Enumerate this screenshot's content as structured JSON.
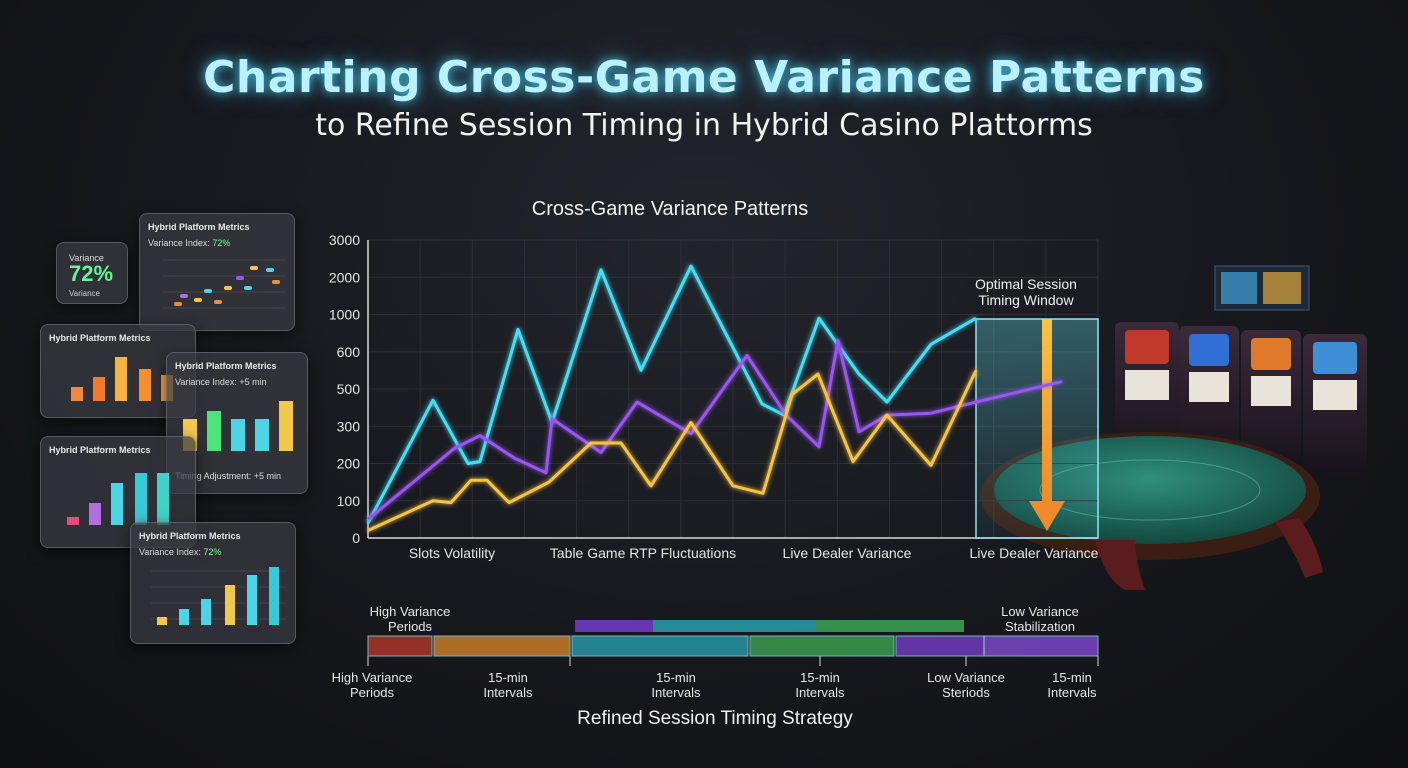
{
  "header": {
    "title": "Charting Cross-Game Variance Patterns",
    "subtitle": "to Refine Session Timing in Hybrid Casino Plattorms"
  },
  "cards": {
    "small": {
      "label": "Variance",
      "value": "72%",
      "footer": "Variance"
    },
    "card1": {
      "title": "Hybrid Platform Metrics",
      "sub_prefix": "Variance Index:",
      "sub_value": "72%"
    },
    "card2": {
      "title": "Hybrid Platform Metrics"
    },
    "card3": {
      "title": "Hybrid Platform Metrics",
      "sub": "Variance Index: +5 min",
      "footer": "Timing Adjustment: +5 min"
    },
    "card4": {
      "title": "Hybrid Platform Metrics"
    },
    "card5": {
      "title": "Hybrid Platform Metrics",
      "sub_prefix": "Variance Index:",
      "sub_value": "72%"
    }
  },
  "chart_data": {
    "type": "line",
    "title": "Cross-Game Variance Patterns",
    "y_ticks": [
      "3000",
      "2000",
      "1000",
      "600",
      "500",
      "300",
      "200",
      "100",
      "0"
    ],
    "category_labels": [
      "Slots Volatility",
      "Table Game RTP Fluctuations",
      "Live Dealer Variance",
      "Live Dealer Variance"
    ],
    "highlight_label": "Optimal Session Timing Window",
    "series": [
      {
        "color": "#45dff5",
        "values": [
          0.4,
          3.7,
          2.0,
          2.05,
          5.6,
          3.1,
          7.2,
          4.5,
          7.3,
          3.6,
          3.3,
          5.9,
          4.4,
          3.65,
          5.2,
          5.9
        ]
      },
      {
        "color": "#9a55f2",
        "values": [
          0.5,
          2.4,
          2.75,
          2.15,
          1.75,
          3.2,
          2.3,
          3.65,
          2.8,
          4.9,
          3.3,
          2.45,
          5.3,
          2.85,
          3.3,
          3.35,
          3.65,
          4.2
        ]
      },
      {
        "color": "#f6c443",
        "values": [
          0.2,
          1.0,
          0.95,
          1.55,
          1.55,
          0.95,
          1.5,
          2.55,
          2.55,
          1.4,
          3.1,
          1.4,
          1.2,
          3.85,
          4.4,
          2.05,
          3.3,
          1.95,
          4.5
        ]
      }
    ],
    "timeline": {
      "title": "Refined Session Timing Strategy",
      "top_left_label": "High Variance Periods",
      "top_right_label": "Low Variance Stabilization",
      "bottom_labels": [
        "High Variance Periods",
        "15-min Intervals",
        "15-min Intervals",
        "15-min Intervals",
        "Low Variance Steriods",
        "15-min Intervals"
      ],
      "colors": {
        "red": "#c0392b",
        "orange": "#e08a2a",
        "teal": "#2aa6b8",
        "green": "#3fae55",
        "purple": "#7b3fd4",
        "violet": "#8a4be0"
      }
    }
  }
}
